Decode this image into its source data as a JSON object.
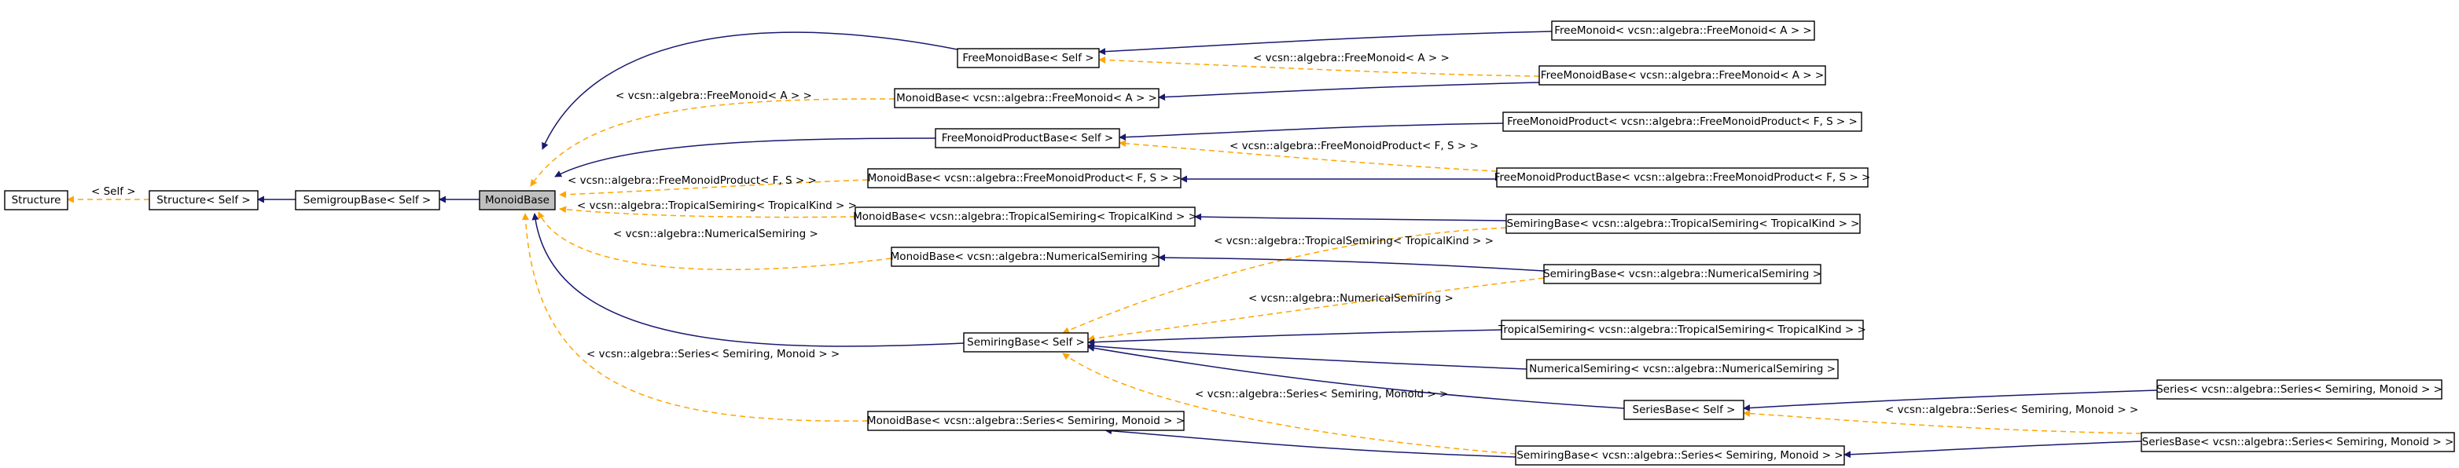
{
  "colors": {
    "inheritance_edge": "#191970",
    "template_edge": "#ffa500",
    "focus_node_fill": "#bfbfbf",
    "node_fill": "#ffffff"
  },
  "nodes": {
    "structure": "Structure",
    "structure_self": "Structure< Self >",
    "semigroupbase_self": "SemigroupBase< Self >",
    "monoidbase": "MonoidBase",
    "freemonoidbase_self": "FreeMonoidBase< Self >",
    "monoidbase_freemonoid": "MonoidBase< vcsn::algebra::FreeMonoid< A > >",
    "freemonoidproductbase_self": "FreeMonoidProductBase< Self >",
    "monoidbase_freemonoidproduct": "MonoidBase< vcsn::algebra::FreeMonoidProduct< F, S > >",
    "monoidbase_tropicalsemiring": "MonoidBase< vcsn::algebra::TropicalSemiring< TropicalKind > >",
    "monoidbase_numericalsemiring": "MonoidBase< vcsn::algebra::NumericalSemiring >",
    "semiringbase_self": "SemiringBase< Self >",
    "monoidbase_series": "MonoidBase< vcsn::algebra::Series< Semiring, Monoid > >",
    "freemonoid": "FreeMonoid< vcsn::algebra::FreeMonoid< A > >",
    "freemonoidbase_freemonoid": "FreeMonoidBase< vcsn::algebra::FreeMonoid< A > >",
    "freemonoidproduct": "FreeMonoidProduct< vcsn::algebra::FreeMonoidProduct< F, S > >",
    "freemonoidproductbase_freemonoidproduct": "FreeMonoidProductBase< vcsn::algebra::FreeMonoidProduct< F, S > >",
    "semiringbase_tropicalsemiring": "SemiringBase< vcsn::algebra::TropicalSemiring< TropicalKind > >",
    "semiringbase_numericalsemiring": "SemiringBase< vcsn::algebra::NumericalSemiring >",
    "tropicalsemiring": "TropicalSemiring< vcsn::algebra::TropicalSemiring< TropicalKind > >",
    "numericalsemiring": "NumericalSemiring< vcsn::algebra::NumericalSemiring >",
    "seriesbase_self": "SeriesBase< Self >",
    "semiringbase_series": "SemiringBase< vcsn::algebra::Series< Semiring, Monoid > >",
    "series": "Series< vcsn::algebra::Series< Semiring, Monoid > >",
    "seriesbase_series": "SeriesBase< vcsn::algebra::Series< Semiring, Monoid > >"
  },
  "edge_labels": {
    "self": "< Self >",
    "freemonoid_a": "< vcsn::algebra::FreeMonoid< A > >",
    "freemonoid_a_right": "< vcsn::algebra::FreeMonoid< A > >",
    "freemonoidproduct_fs": "< vcsn::algebra::FreeMonoidProduct< F, S > >",
    "freemonoidproduct_fs_right": "< vcsn::algebra::FreeMonoidProduct< F, S > >",
    "tropicalsemiring_kind": "< vcsn::algebra::TropicalSemiring< TropicalKind > >",
    "tropicalsemiring_kind_right": "< vcsn::algebra::TropicalSemiring< TropicalKind > >",
    "numericalsemiring": "< vcsn::algebra::NumericalSemiring >",
    "numericalsemiring_right": "< vcsn::algebra::NumericalSemiring >",
    "series_sm": "< vcsn::algebra::Series< Semiring, Monoid > >",
    "series_sm_mid": "< vcsn::algebra::Series< Semiring, Monoid > >",
    "series_sm_right": "< vcsn::algebra::Series< Semiring, Monoid > >"
  }
}
